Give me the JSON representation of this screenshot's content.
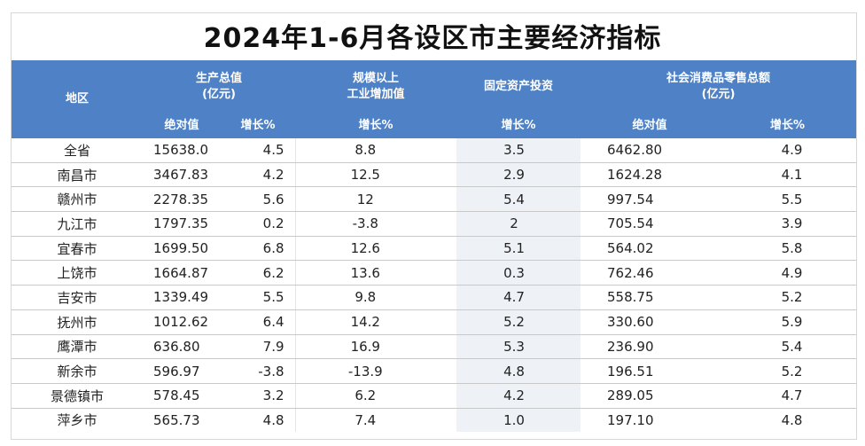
{
  "title": "2024年1-6月各设区市主要经济指标",
  "header": {
    "region": "地区",
    "gdp_line1": "生产总值",
    "gdp_line2": "(亿元)",
    "industry_line1": "规模以上",
    "industry_line2": "工业增加值",
    "fixed_investment": "固定资产投资",
    "retail_line1": "社会消费品零售总额",
    "retail_line2": "(亿元)",
    "absolute_value": "绝对值",
    "growth_pct": "增长%"
  },
  "rows": [
    {
      "region": "全省",
      "gdp": "15638.0",
      "gdp_growth": "4.5",
      "industry_growth": "8.8",
      "fixed_growth": "3.5",
      "retail": "6462.80",
      "retail_growth": "4.9"
    },
    {
      "region": "南昌市",
      "gdp": "3467.83",
      "gdp_growth": "4.2",
      "industry_growth": "12.5",
      "fixed_growth": "2.9",
      "retail": "1624.28",
      "retail_growth": "4.1"
    },
    {
      "region": "赣州市",
      "gdp": "2278.35",
      "gdp_growth": "5.6",
      "industry_growth": "12",
      "fixed_growth": "5.4",
      "retail": "997.54",
      "retail_growth": "5.5"
    },
    {
      "region": "九江市",
      "gdp": "1797.35",
      "gdp_growth": "0.2",
      "industry_growth": "-3.8",
      "fixed_growth": "2",
      "retail": "705.54",
      "retail_growth": "3.9"
    },
    {
      "region": "宜春市",
      "gdp": "1699.50",
      "gdp_growth": "6.8",
      "industry_growth": "12.6",
      "fixed_growth": "5.1",
      "retail": "564.02",
      "retail_growth": "5.8"
    },
    {
      "region": "上饶市",
      "gdp": "1664.87",
      "gdp_growth": "6.2",
      "industry_growth": "13.6",
      "fixed_growth": "0.3",
      "retail": "762.46",
      "retail_growth": "4.9"
    },
    {
      "region": "吉安市",
      "gdp": "1339.49",
      "gdp_growth": "5.5",
      "industry_growth": "9.8",
      "fixed_growth": "4.7",
      "retail": "558.75",
      "retail_growth": "5.2"
    },
    {
      "region": "抚州市",
      "gdp": "1012.62",
      "gdp_growth": "6.4",
      "industry_growth": "14.2",
      "fixed_growth": "5.2",
      "retail": "330.60",
      "retail_growth": "5.9"
    },
    {
      "region": "鹰潭市",
      "gdp": "636.80",
      "gdp_growth": "7.9",
      "industry_growth": "16.9",
      "fixed_growth": "5.3",
      "retail": "236.90",
      "retail_growth": "5.4"
    },
    {
      "region": "新余市",
      "gdp": "596.97",
      "gdp_growth": "-3.8",
      "industry_growth": "-13.9",
      "fixed_growth": "4.8",
      "retail": "196.51",
      "retail_growth": "5.2"
    },
    {
      "region": "景德镇市",
      "gdp": "578.45",
      "gdp_growth": "3.2",
      "industry_growth": "6.2",
      "fixed_growth": "4.2",
      "retail": "289.05",
      "retail_growth": "4.7"
    },
    {
      "region": "萍乡市",
      "gdp": "565.73",
      "gdp_growth": "4.8",
      "industry_growth": "7.4",
      "fixed_growth": "1.0",
      "retail": "197.10",
      "retail_growth": "4.8"
    }
  ],
  "colors": {
    "header_bg": "#4f81c7",
    "header_text": "#ffffff",
    "fixed_col_bg": "#eef1f6"
  }
}
